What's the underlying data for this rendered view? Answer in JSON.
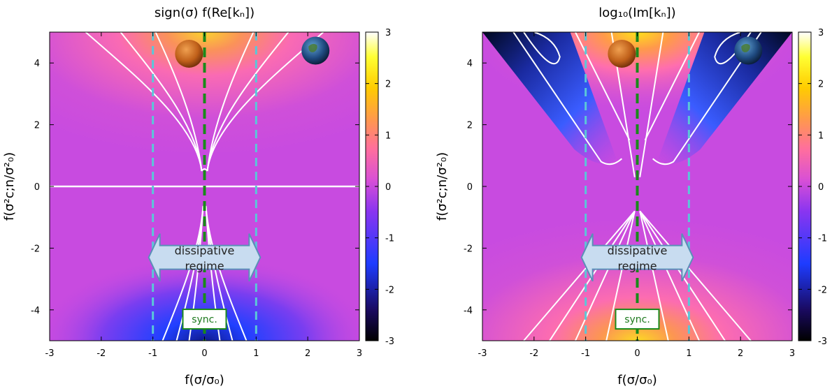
{
  "figure": {
    "panels": [
      {
        "title": "sign(σ) f(Re[kₙ])",
        "xlabel": "f(σ/σ₀)",
        "ylabel": "f(σ²c;n/σ²₀)",
        "annotation_arrow": "dissipative\nregime",
        "annotation_box": "sync.",
        "colorbar_ticks": [
          "3",
          "2",
          "1",
          "0",
          "-1",
          "-2",
          "-3"
        ]
      },
      {
        "title": "log₁₀(Im[kₙ])",
        "xlabel": "f(σ/σ₀)",
        "ylabel": "f(σ²c;n/σ²₀)",
        "annotation_arrow": "dissipative\nregime",
        "annotation_box": "sync.",
        "colorbar_ticks": [
          "3",
          "2",
          "1",
          "0",
          "-1",
          "-2",
          "-3"
        ]
      }
    ],
    "x_ticks": [
      "-3",
      "-2",
      "-1",
      "0",
      "1",
      "2",
      "3"
    ],
    "y_ticks": [
      "4",
      "2",
      "0",
      "-2",
      "-4"
    ],
    "colors": {
      "background_magenta": "#c84be0",
      "colorbar": [
        "#000000",
        "#1a0a60",
        "#1e3cff",
        "#8a35f0",
        "#d84fd6",
        "#ff6e9e",
        "#ff9a4a",
        "#ffcc00",
        "#ffff33",
        "#ffffff"
      ],
      "contour": "#ffffff",
      "dashed_cyan": "#5ac8d8",
      "dashed_green": "#1a8a1a",
      "arrow_fill": "#c8dcf0",
      "arrow_stroke": "#5a90b8"
    },
    "icons": [
      "planet-venus-icon",
      "planet-earth-icon"
    ]
  },
  "chart_data": [
    {
      "type": "heatmap",
      "title": "sign(σ) f(Re[kₙ])",
      "xlabel": "f(σ/σ₀)",
      "ylabel": "f(σ²c;n/σ²₀)",
      "xlim": [
        -3,
        3
      ],
      "ylim": [
        -5,
        5
      ],
      "clim": [
        -3,
        3
      ],
      "x_ticks": [
        -3,
        -2,
        -1,
        0,
        1,
        2,
        3
      ],
      "y_ticks": [
        -4,
        -2,
        0,
        2,
        4
      ],
      "colorbar_ticks": [
        -3,
        -2,
        -1,
        0,
        1,
        2,
        3
      ],
      "vertical_dashed_lines": [
        -1,
        0,
        1
      ],
      "annotations": [
        "dissipative regime",
        "sync."
      ]
    },
    {
      "type": "heatmap",
      "title": "log₁₀(Im[kₙ])",
      "xlabel": "f(σ/σ₀)",
      "ylabel": "f(σ²c;n/σ²₀)",
      "xlim": [
        -3,
        3
      ],
      "ylim": [
        -5,
        5
      ],
      "clim": [
        -3,
        3
      ],
      "x_ticks": [
        -3,
        -2,
        -1,
        0,
        1,
        2,
        3
      ],
      "y_ticks": [
        -4,
        -2,
        0,
        2,
        4
      ],
      "colorbar_ticks": [
        -3,
        -2,
        -1,
        0,
        1,
        2,
        3
      ],
      "vertical_dashed_lines": [
        -1,
        0,
        1
      ],
      "annotations": [
        "dissipative regime",
        "sync."
      ]
    }
  ]
}
